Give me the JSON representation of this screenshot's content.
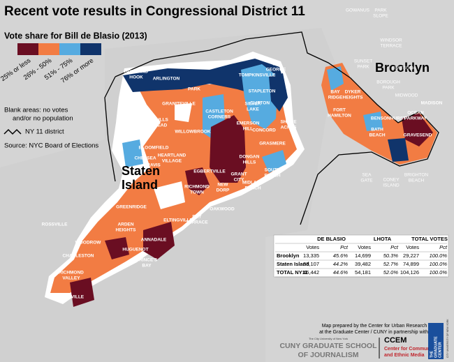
{
  "title": "Recent vote results in Congressional District 11",
  "legend": {
    "title": "Vote share for Bill de Blasio (2013)",
    "items": [
      {
        "label": "25% or less",
        "color": "#6a0e22"
      },
      {
        "label": "26% - 50%",
        "color": "#f27c43"
      },
      {
        "label": "51% - 75%",
        "color": "#56abe0"
      },
      {
        "label": "76% or more",
        "color": "#10346b"
      }
    ],
    "blank_note": [
      "Blank areas: no votes",
      "and/or no population"
    ],
    "district_label": "NY 11 district",
    "source": "Source: NYC Board of Elections"
  },
  "borough_labels": {
    "brooklyn": "Brooklyn",
    "staten_island": [
      "Staten",
      "Island"
    ]
  },
  "place_labels": [
    "GOWANUS",
    [
      "PARK",
      "SLOPE"
    ],
    [
      "WINDSOR",
      "TERRACE"
    ],
    [
      "SUNSET",
      "PARK"
    ],
    [
      "BOROUGH",
      "PARK"
    ],
    "FLATBUSH",
    "MIDWOOD",
    [
      "BAY",
      "RIDGE"
    ],
    [
      "DYKER",
      "HEIGHTS"
    ],
    [
      "FORT",
      "HAMILTON"
    ],
    "BENSONHURST",
    [
      "BATH",
      "BEACH"
    ],
    "GRAVESEND",
    [
      "OCEAN",
      "PARKWAY"
    ],
    "MADISON",
    [
      "SEA",
      "GATE"
    ],
    [
      "CONEY",
      "ISLAND"
    ],
    [
      "BRIGHTON",
      "BEACH"
    ],
    [
      "HOWLAND",
      "HOOK"
    ],
    "ARLINGTON",
    "PARK",
    [
      "ST.",
      "GEORGE"
    ],
    "TOMPKINSVILLE",
    "STAPLETON",
    "GRANITEVILLE",
    [
      "CASTLETON",
      "CORNERS"
    ],
    [
      "SILVER",
      "LAKE"
    ],
    [
      "CLIFTON"
    ],
    [
      "BULLS",
      "HEAD"
    ],
    "WILLOWBROOK",
    [
      "EMERSON",
      "HILL"
    ],
    "CONCORD",
    [
      "SHORE",
      "ACRES"
    ],
    "BLOOMFIELD",
    "CHELSEA",
    [
      "HEARTLAND",
      "VILLAGE"
    ],
    "TRAVIS",
    "GRASMERE",
    [
      "DONGAN",
      "HILLS"
    ],
    "EGBERTVILLE",
    [
      "RICHMOND",
      "TOWN"
    ],
    [
      "NEW",
      "DORP"
    ],
    [
      "GRANT",
      "CITY"
    ],
    [
      "SOUTH",
      "BEACH"
    ],
    [
      "MIDLAND",
      "BEACH"
    ],
    "OAKWOOD",
    [
      "BAY",
      "TERRACE"
    ],
    "GREENRIDGE",
    "ROSSVILLE",
    [
      "ARDEN",
      "HEIGHTS"
    ],
    "ELTINGVILLE",
    "ANNADALE",
    "WOODROW",
    "CHARLESTON",
    "HUGUENOT",
    [
      "PRINCE'S",
      "BAY"
    ],
    [
      "RICHMOND",
      "VALLEY"
    ],
    "TOTTENVILLE"
  ],
  "table": {
    "groups": [
      "DE BLASIO",
      "LHOTA",
      "TOTAL VOTES"
    ],
    "subheaders": [
      "Votes",
      "Pct",
      "Votes",
      "Pct",
      "Votes",
      "Pct"
    ],
    "rows": [
      [
        "Brooklyn",
        "13,335",
        "45.6%",
        "14,699",
        "50.3%",
        "29,227",
        "100.0%"
      ],
      [
        "Staten Island",
        "33,107",
        "44.2%",
        "39,482",
        "52.7%",
        "74,899",
        "100.0%"
      ],
      [
        "TOTAL NY11",
        "46,442",
        "44.6%",
        "54,181",
        "52.0%",
        "104,126",
        "100.0%"
      ]
    ]
  },
  "credits": {
    "lines": [
      "Map prepared by the Center for Urban Research",
      "at the Graduate Center / CUNY in partnership with:"
    ],
    "cuny_small": "The City University of New York",
    "cuny_journalism": [
      "CUNY GRADUATE SCHOOL",
      "OF JOURNALISM"
    ],
    "ccem": [
      "CCEM",
      "Center for Community",
      "and Ethnic Media"
    ],
    "gc": [
      "THE",
      "GRADUATE",
      "CENTER"
    ],
    "gc_small": "CITY UNIVERSITY OF NEW YORK"
  }
}
